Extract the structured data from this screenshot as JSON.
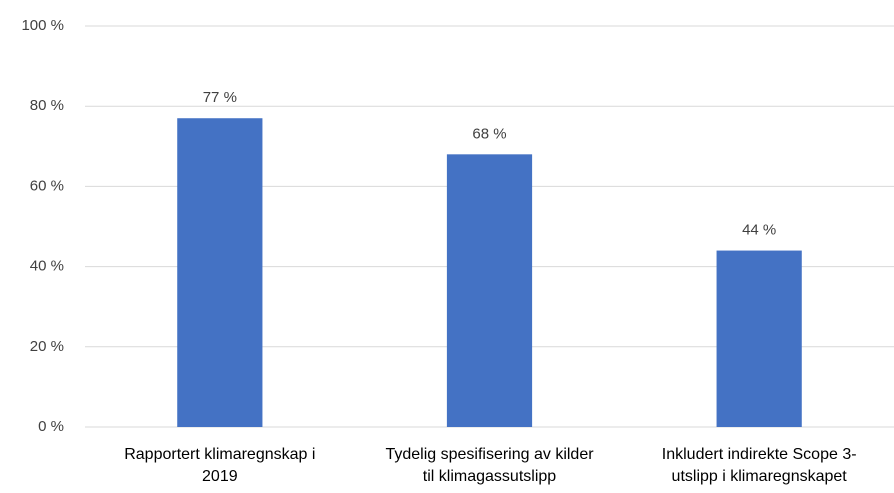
{
  "chart_data": {
    "type": "bar",
    "categories": [
      "Rapportert klimaregnskap i\n2019",
      "Tydelig spesifisering av kilder\ntil klimagassutslipp",
      "Inkludert indirekte Scope 3-\nutslipp i klimaregnskapet"
    ],
    "values": [
      77,
      68,
      44
    ],
    "value_labels": [
      "77 %",
      "68 %",
      "44 %"
    ],
    "color": "#4472c4",
    "ylim": [
      0,
      100
    ],
    "yticks": [
      {
        "value": 0,
        "label": "0 %"
      },
      {
        "value": 20,
        "label": "20 %"
      },
      {
        "value": 40,
        "label": "40 %"
      },
      {
        "value": 60,
        "label": "60 %"
      },
      {
        "value": 80,
        "label": "80 %"
      },
      {
        "value": 100,
        "label": "100 %"
      }
    ],
    "grid": true
  }
}
